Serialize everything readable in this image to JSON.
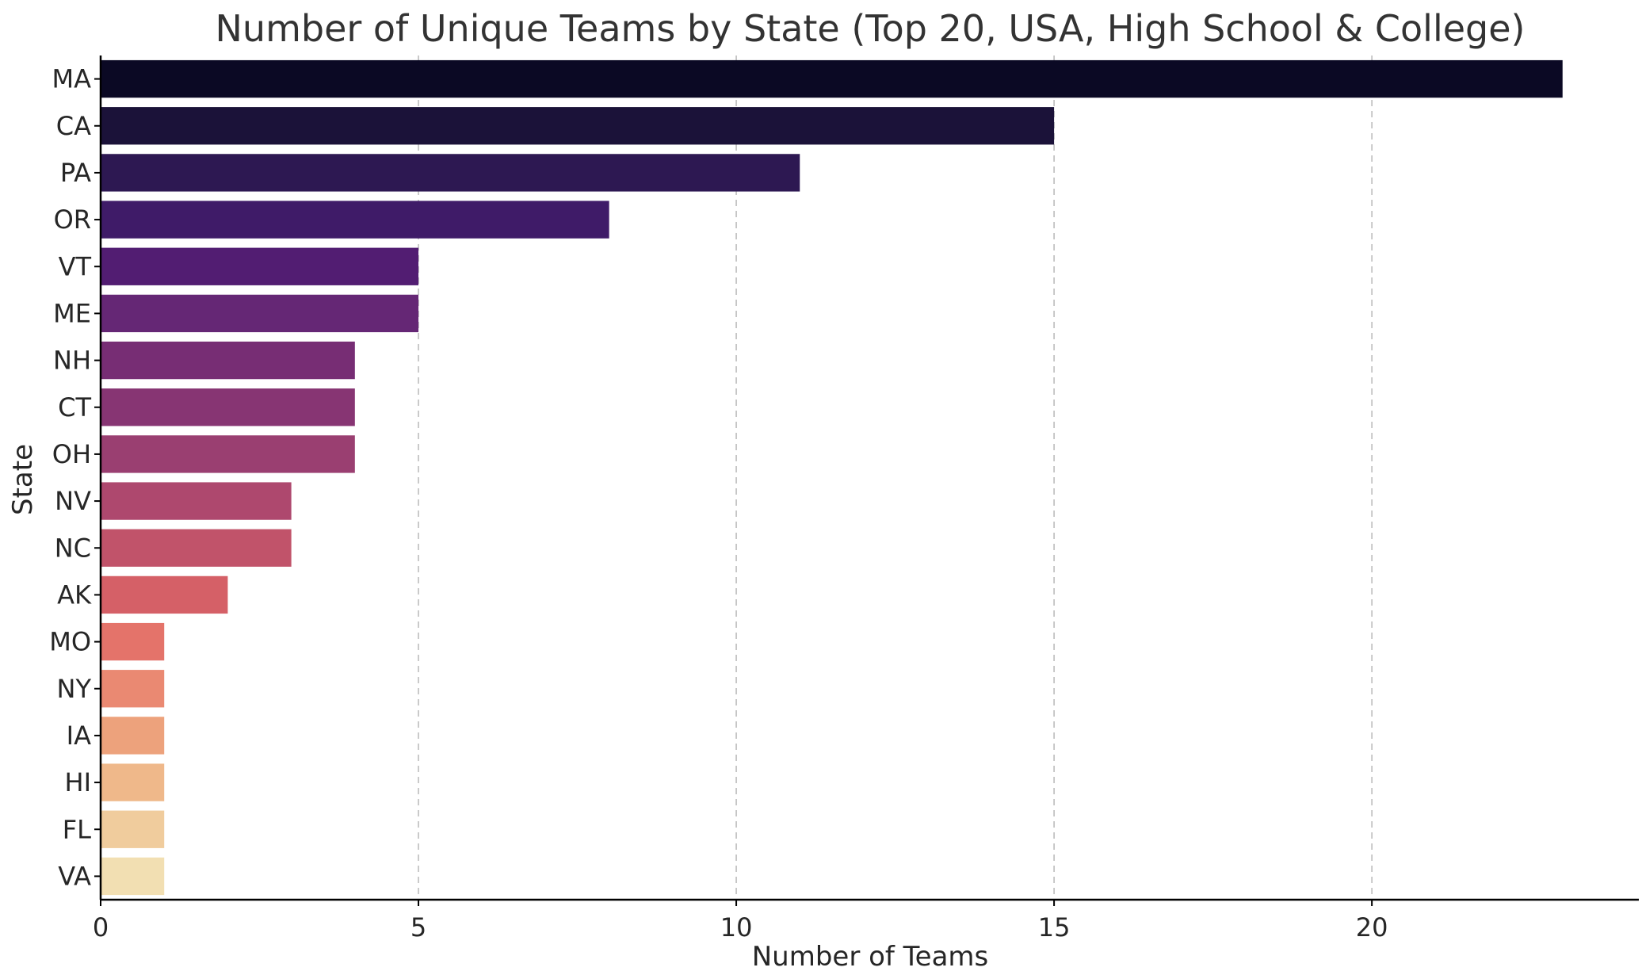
{
  "chart_data": {
    "type": "bar",
    "orientation": "horizontal",
    "title": "Number of Unique Teams by State (Top 20, USA, High School & College)",
    "xlabel": "Number of Teams",
    "ylabel": "State",
    "xlim": [
      0,
      24.2
    ],
    "xticks": [
      0,
      5,
      10,
      15,
      20
    ],
    "grid": "vertical dashed",
    "categories": [
      "MA",
      "CA",
      "PA",
      "OR",
      "VT",
      "ME",
      "NH",
      "CT",
      "OH",
      "NV",
      "NC",
      "AK",
      "MO",
      "NY",
      "IA",
      "HI",
      "FL",
      "VA"
    ],
    "values": [
      23,
      15,
      11,
      8,
      5,
      5,
      4,
      4,
      4,
      3,
      3,
      2,
      1,
      1,
      1,
      1,
      1,
      1
    ],
    "colors": [
      "#0b0924",
      "#1b1239",
      "#2d1852",
      "#3f1b68",
      "#521d72",
      "#652775",
      "#772d74",
      "#873573",
      "#9a3f71",
      "#ae486e",
      "#c1536a",
      "#d56067",
      "#e4736a",
      "#ea8972",
      "#eda27c",
      "#efb88a",
      "#f0cc9d",
      "#f2dfb2"
    ]
  }
}
